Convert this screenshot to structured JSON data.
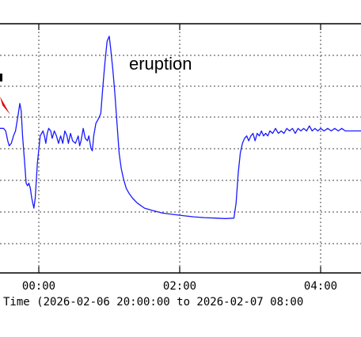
{
  "chart_data": {
    "type": "line",
    "xlabel": "Time (2026-02-06 20:00:00 to 2026-02-07 08:00",
    "x_tick_labels": [
      "00:00",
      "02:00",
      "04:00"
    ],
    "x_ticks_hours_after_midnight": [
      0,
      2,
      4
    ],
    "xlim_hours_after_midnight": [
      -0.55,
      4.58
    ],
    "ylim_relative": [
      0,
      1
    ],
    "grid": true,
    "line_color": "#1a1aff",
    "annotations": [
      {
        "text": "eruption",
        "at_hours": 1.05
      }
    ],
    "arrow_color": "#e00000",
    "series": [
      {
        "points_hours_value": [
          [
            -0.55,
            0.58
          ],
          [
            -0.5,
            0.58
          ],
          [
            -0.47,
            0.57
          ],
          [
            -0.44,
            0.53
          ],
          [
            -0.42,
            0.51
          ],
          [
            -0.39,
            0.52
          ],
          [
            -0.36,
            0.55
          ],
          [
            -0.33,
            0.57
          ],
          [
            -0.29,
            0.64
          ],
          [
            -0.27,
            0.68
          ],
          [
            -0.25,
            0.65
          ],
          [
            -0.23,
            0.55
          ],
          [
            -0.2,
            0.44
          ],
          [
            -0.18,
            0.36
          ],
          [
            -0.16,
            0.35
          ],
          [
            -0.14,
            0.36
          ],
          [
            -0.12,
            0.34
          ],
          [
            -0.1,
            0.3
          ],
          [
            -0.07,
            0.26
          ],
          [
            -0.05,
            0.3
          ],
          [
            -0.02,
            0.44
          ],
          [
            0.02,
            0.55
          ],
          [
            0.06,
            0.57
          ],
          [
            0.08,
            0.55
          ],
          [
            0.1,
            0.52
          ],
          [
            0.12,
            0.56
          ],
          [
            0.14,
            0.58
          ],
          [
            0.17,
            0.57
          ],
          [
            0.19,
            0.54
          ],
          [
            0.22,
            0.57
          ],
          [
            0.25,
            0.55
          ],
          [
            0.28,
            0.52
          ],
          [
            0.31,
            0.55
          ],
          [
            0.34,
            0.52
          ],
          [
            0.37,
            0.57
          ],
          [
            0.4,
            0.55
          ],
          [
            0.42,
            0.52
          ],
          [
            0.45,
            0.56
          ],
          [
            0.48,
            0.53
          ],
          [
            0.52,
            0.52
          ],
          [
            0.56,
            0.55
          ],
          [
            0.58,
            0.51
          ],
          [
            0.6,
            0.53
          ],
          [
            0.63,
            0.58
          ],
          [
            0.66,
            0.54
          ],
          [
            0.69,
            0.53
          ],
          [
            0.71,
            0.55
          ],
          [
            0.74,
            0.5
          ],
          [
            0.76,
            0.49
          ],
          [
            0.78,
            0.55
          ],
          [
            0.81,
            0.6
          ],
          [
            0.85,
            0.62
          ],
          [
            0.88,
            0.64
          ],
          [
            0.91,
            0.75
          ],
          [
            0.94,
            0.85
          ],
          [
            0.97,
            0.93
          ],
          [
            1.0,
            0.95
          ],
          [
            1.02,
            0.9
          ],
          [
            1.05,
            0.82
          ],
          [
            1.08,
            0.72
          ],
          [
            1.11,
            0.6
          ],
          [
            1.14,
            0.48
          ],
          [
            1.17,
            0.42
          ],
          [
            1.2,
            0.38
          ],
          [
            1.24,
            0.34
          ],
          [
            1.28,
            0.32
          ],
          [
            1.33,
            0.3
          ],
          [
            1.4,
            0.28
          ],
          [
            1.5,
            0.26
          ],
          [
            1.62,
            0.25
          ],
          [
            1.76,
            0.24
          ],
          [
            1.9,
            0.235
          ],
          [
            2.05,
            0.23
          ],
          [
            2.2,
            0.225
          ],
          [
            2.35,
            0.222
          ],
          [
            2.5,
            0.22
          ],
          [
            2.65,
            0.218
          ],
          [
            2.77,
            0.22
          ],
          [
            2.8,
            0.28
          ],
          [
            2.83,
            0.4
          ],
          [
            2.86,
            0.48
          ],
          [
            2.89,
            0.52
          ],
          [
            2.92,
            0.54
          ],
          [
            2.95,
            0.55
          ],
          [
            2.98,
            0.53
          ],
          [
            3.01,
            0.55
          ],
          [
            3.04,
            0.56
          ],
          [
            3.07,
            0.53
          ],
          [
            3.1,
            0.56
          ],
          [
            3.13,
            0.55
          ],
          [
            3.16,
            0.57
          ],
          [
            3.19,
            0.55
          ],
          [
            3.22,
            0.56
          ],
          [
            3.25,
            0.55
          ],
          [
            3.28,
            0.57
          ],
          [
            3.32,
            0.56
          ],
          [
            3.36,
            0.58
          ],
          [
            3.4,
            0.56
          ],
          [
            3.44,
            0.57
          ],
          [
            3.48,
            0.56
          ],
          [
            3.52,
            0.58
          ],
          [
            3.56,
            0.57
          ],
          [
            3.6,
            0.58
          ],
          [
            3.64,
            0.56
          ],
          [
            3.68,
            0.58
          ],
          [
            3.72,
            0.57
          ],
          [
            3.76,
            0.58
          ],
          [
            3.8,
            0.57
          ],
          [
            3.84,
            0.59
          ],
          [
            3.88,
            0.57
          ],
          [
            3.92,
            0.58
          ],
          [
            3.96,
            0.57
          ],
          [
            4.0,
            0.58
          ],
          [
            4.05,
            0.57
          ],
          [
            4.1,
            0.58
          ],
          [
            4.15,
            0.57
          ],
          [
            4.2,
            0.58
          ],
          [
            4.25,
            0.57
          ],
          [
            4.3,
            0.58
          ],
          [
            4.35,
            0.57
          ],
          [
            4.4,
            0.57
          ],
          [
            4.45,
            0.57
          ],
          [
            4.5,
            0.57
          ],
          [
            4.58,
            0.57
          ]
        ]
      }
    ]
  }
}
